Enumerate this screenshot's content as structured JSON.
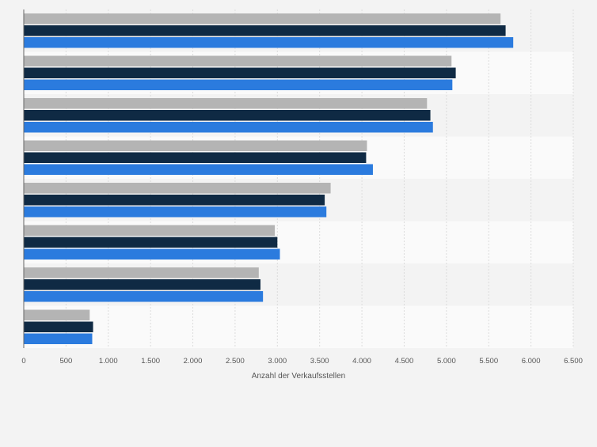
{
  "chart_data": {
    "type": "bar",
    "orientation": "horizontal",
    "categories": [
      "",
      "",
      "",
      "",
      "",
      "",
      "",
      ""
    ],
    "series": [
      {
        "color": "#b4b4b4",
        "values": [
          5640,
          5060,
          4770,
          4060,
          3630,
          2970,
          2780,
          780
        ]
      },
      {
        "color": "#0f2a44",
        "values": [
          5700,
          5110,
          4810,
          4050,
          3560,
          3000,
          2800,
          820
        ]
      },
      {
        "color": "#2b7bde",
        "values": [
          5790,
          5070,
          4840,
          4130,
          3580,
          3030,
          2830,
          810
        ]
      }
    ],
    "xlim": [
      0,
      6500
    ],
    "xticks": [
      "0",
      "500",
      "1.000",
      "1.500",
      "2.000",
      "2.500",
      "3.000",
      "3.500",
      "4.000",
      "4.500",
      "5.000",
      "5.500",
      "6.000",
      "6.500"
    ],
    "xlabel": "Anzahl der Verkaufsstellen",
    "ylabel": "",
    "grid": true
  }
}
